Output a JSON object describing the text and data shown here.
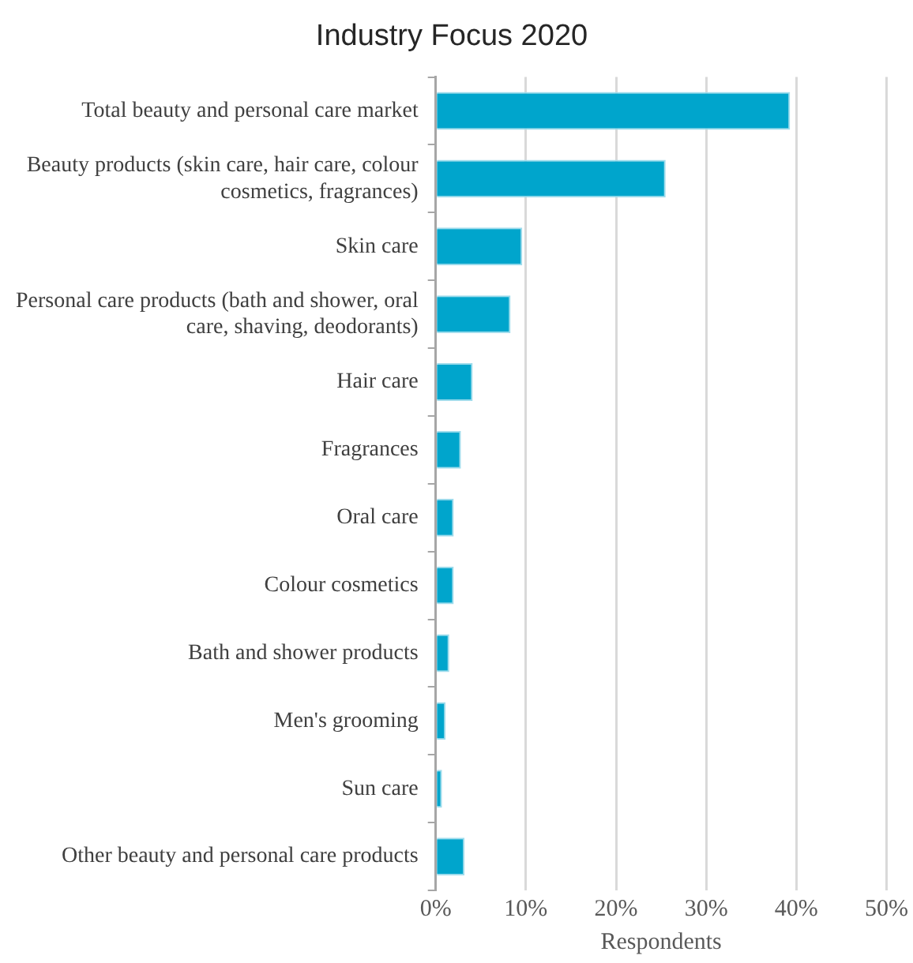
{
  "chart_data": {
    "type": "bar",
    "orientation": "horizontal",
    "title": "Industry Focus 2020",
    "xlabel": "Respondents",
    "categories": [
      "Total beauty and personal care market",
      "Beauty products (skin care, hair care, colour cosmetics, fragrances)",
      "Skin care",
      "Personal care products (bath and shower, oral care, shaving, deodorants)",
      "Hair care",
      "Fragrances",
      "Oral care",
      "Colour cosmetics",
      "Bath and shower products",
      "Men's grooming",
      "Sun care",
      "Other beauty and personal care products"
    ],
    "values": [
      39.3,
      25.5,
      9.6,
      8.3,
      4.1,
      2.8,
      2.0,
      2.0,
      1.5,
      1.1,
      0.7,
      3.2
    ],
    "color": "#00a5cc",
    "xlim": [
      0,
      50
    ],
    "xticks": [
      {
        "value": 0,
        "label": "0%"
      },
      {
        "value": 10,
        "label": "10%"
      },
      {
        "value": 20,
        "label": "20%"
      },
      {
        "value": 30,
        "label": "30%"
      },
      {
        "value": 40,
        "label": "40%"
      },
      {
        "value": 50,
        "label": "50%"
      }
    ],
    "grid": "x",
    "legend": false
  }
}
